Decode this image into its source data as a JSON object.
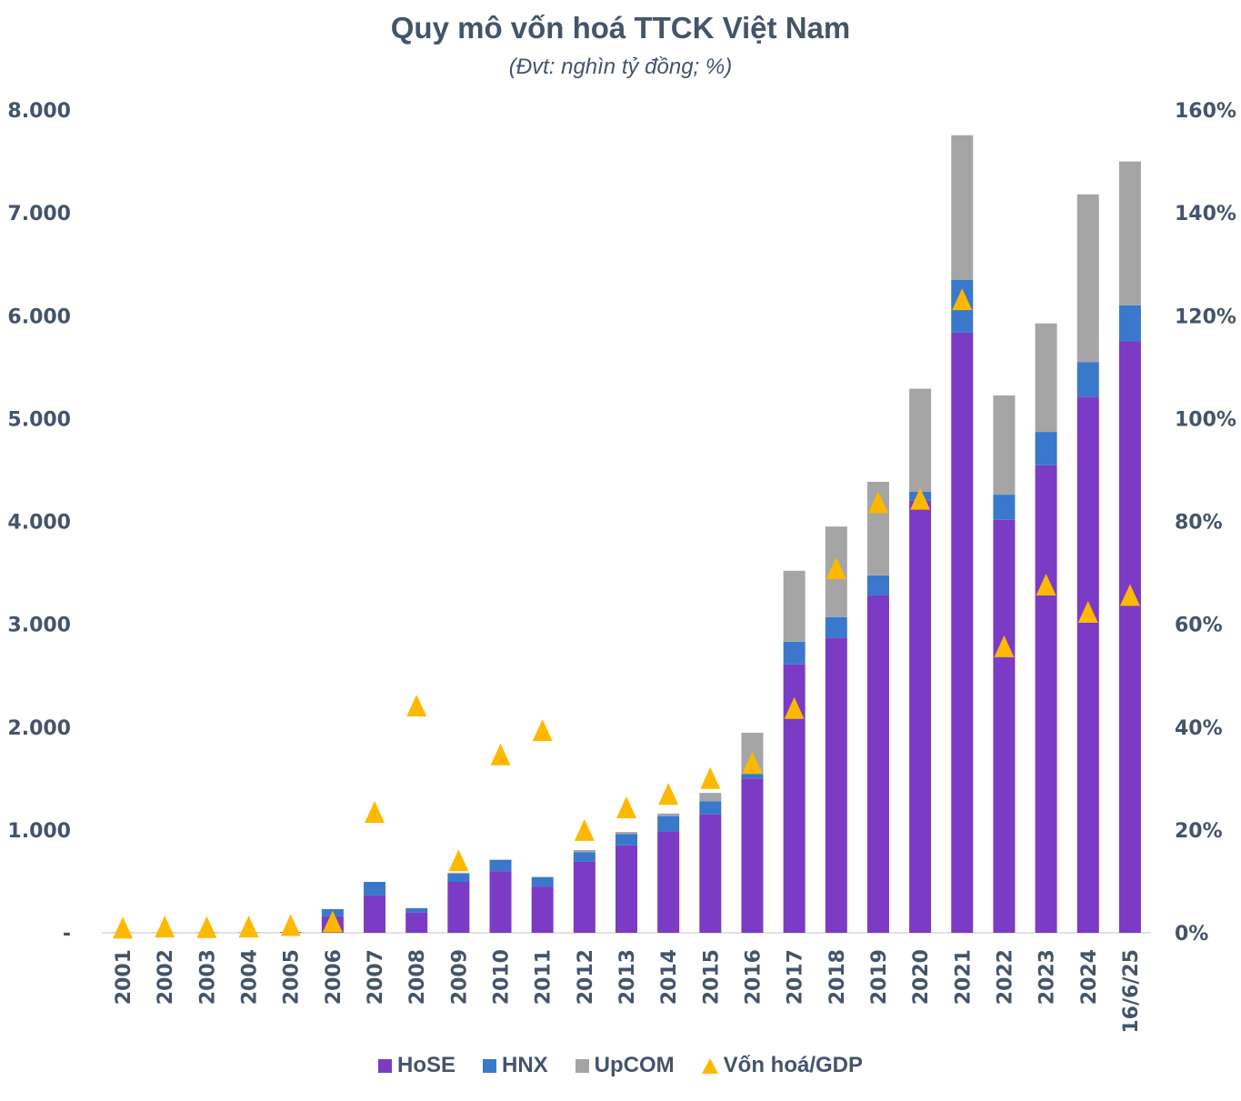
{
  "chart_data": {
    "type": "bar",
    "subtype": "stacked-bar-with-markers",
    "title": "Quy mô vốn hoá TTCK Việt Nam",
    "subtitle": "(Đvt: nghìn tỷ đồng; %)",
    "xlabel": "",
    "ylabel": "",
    "y2label": "",
    "categories": [
      "2001",
      "2002",
      "2003",
      "2004",
      "2005",
      "2006",
      "2007",
      "2008",
      "2009",
      "2010",
      "2011",
      "2012",
      "2013",
      "2014",
      "2015",
      "2016",
      "2017",
      "2018",
      "2019",
      "2020",
      "2021",
      "2022",
      "2023",
      "2024",
      "16/6/25"
    ],
    "series": [
      {
        "name": "HoSE",
        "axis": "left",
        "kind": "bar",
        "color": "#7b3bc4",
        "values": [
          1,
          1,
          2,
          3,
          7,
          160,
          363,
          195,
          495,
          600,
          450,
          690,
          850,
          985,
          1150,
          1500,
          2610,
          2870,
          3280,
          4200,
          5835,
          4015,
          4545,
          5210,
          5750
        ]
      },
      {
        "name": "HNX",
        "axis": "left",
        "kind": "bar",
        "color": "#3a78cc",
        "values": [
          0,
          0,
          0,
          0,
          0,
          70,
          132,
          45,
          80,
          110,
          90,
          95,
          110,
          150,
          130,
          45,
          220,
          200,
          195,
          90,
          515,
          245,
          325,
          340,
          350
        ]
      },
      {
        "name": "UpCOM",
        "axis": "left",
        "kind": "bar",
        "color": "#a5a5a5",
        "values": [
          0,
          0,
          0,
          0,
          0,
          0,
          0,
          0,
          10,
          0,
          5,
          20,
          20,
          25,
          80,
          400,
          690,
          880,
          910,
          1000,
          1405,
          965,
          1055,
          1630,
          1400
        ]
      },
      {
        "name": "Vốn hoá/GDP",
        "axis": "right",
        "kind": "marker",
        "marker": "triangle",
        "color": "#ffb800",
        "values": [
          0.3,
          0.5,
          0.4,
          0.5,
          0.8,
          1.5,
          22.8,
          43.5,
          13.4,
          34,
          38.7,
          19.3,
          23.7,
          26.3,
          29.4,
          32.4,
          43,
          70.2,
          83,
          83.7,
          122.5,
          55,
          67,
          61.7,
          65
        ]
      }
    ],
    "ylim": [
      0,
      8000
    ],
    "y2lim": [
      0,
      160
    ],
    "yticks": [
      "-",
      "1.000",
      "2.000",
      "3.000",
      "4.000",
      "5.000",
      "6.000",
      "7.000",
      "8.000"
    ],
    "y2ticks": [
      "0%",
      "20%",
      "40%",
      "60%",
      "80%",
      "100%",
      "120%",
      "140%",
      "160%"
    ],
    "grid": false,
    "legend_position": "bottom"
  },
  "legend": [
    {
      "label": "HoSE",
      "color": "#7b3bc4",
      "shape": "square"
    },
    {
      "label": "HNX",
      "color": "#3a78cc",
      "shape": "square"
    },
    {
      "label": "UpCOM",
      "color": "#a5a5a5",
      "shape": "square"
    },
    {
      "label": "Vốn hoá/GDP",
      "color": "#ffb800",
      "shape": "triangle"
    }
  ]
}
